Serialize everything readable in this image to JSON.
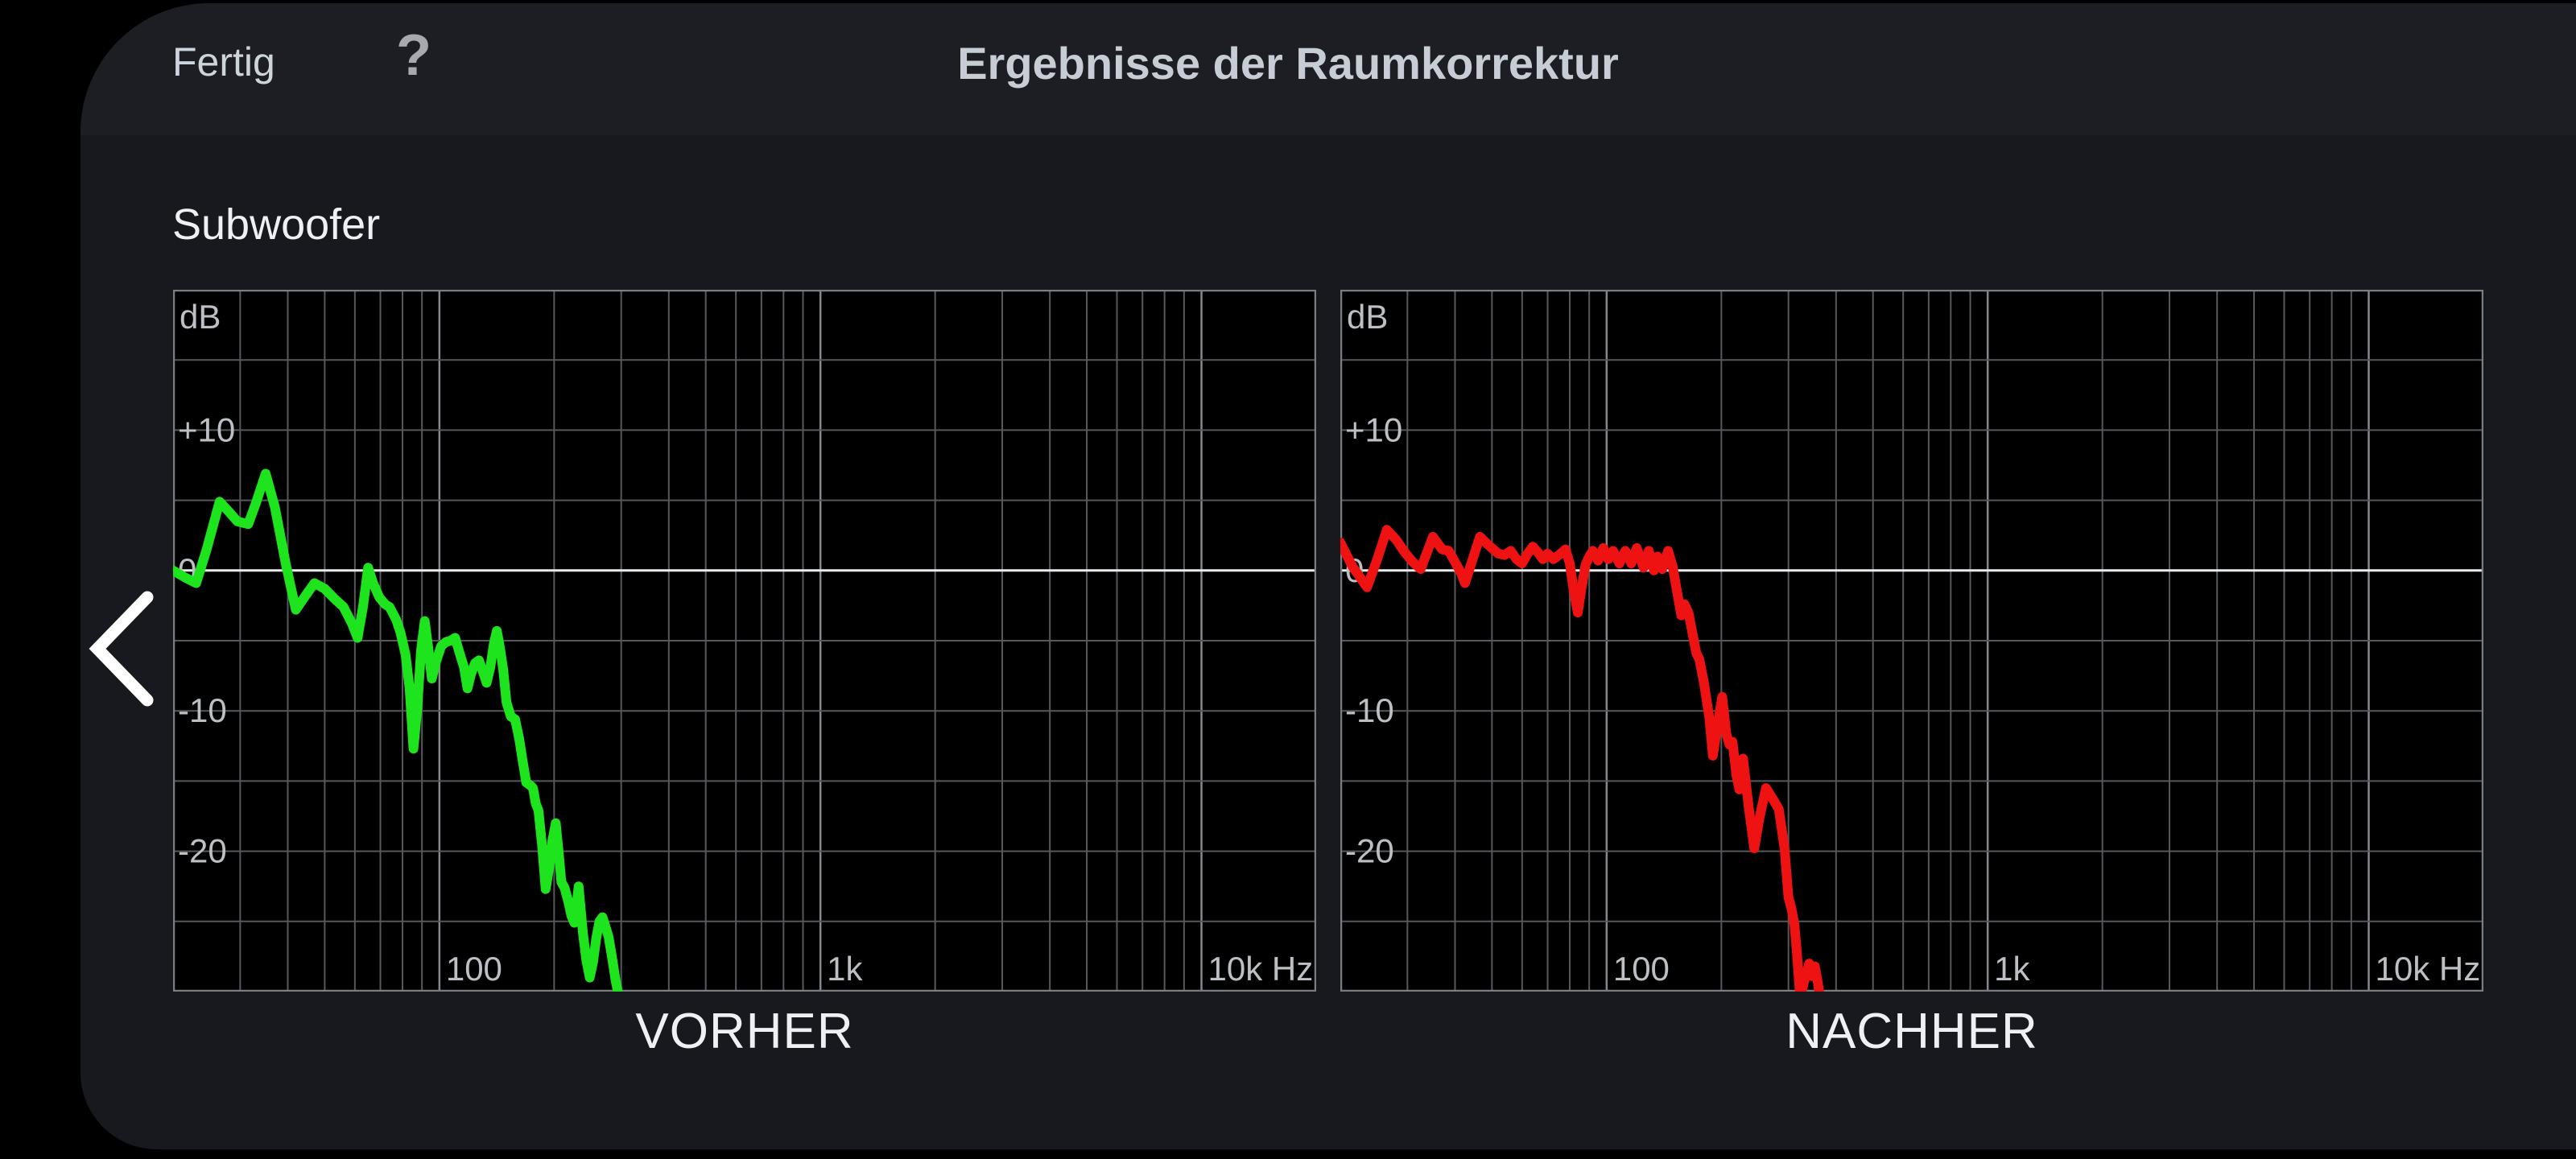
{
  "top_bar": {
    "done_label": "Fertig",
    "help_icon": "?",
    "title": "Ergebnisse der Raumkorrektur"
  },
  "section": {
    "speaker_label": "Subwoofer"
  },
  "nav": {
    "back_icon": "chevron-left"
  },
  "colors": {
    "background": "#000000",
    "panel": "#17191e",
    "topbar": "#1c1e23",
    "plot_background": "#000000",
    "grid": "#56585c",
    "grid_decade": "#85888c",
    "zero_line": "#e8ebee",
    "plot_border": "#7a7d80",
    "before_curve": "#1de41d",
    "after_curve": "#ee1212",
    "axis_text": "#bcc0c4",
    "caption_text": "#eef1f3"
  },
  "chart_data": [
    {
      "type": "line",
      "title": "VORHER",
      "y_unit": "dB",
      "xscale": "log",
      "xlim": [
        20,
        20000
      ],
      "ylim": [
        -30,
        20
      ],
      "grid_step_db": 5,
      "legend_position": "none",
      "y_ticks": [
        {
          "db": 10,
          "label": "+10"
        },
        {
          "db": 0,
          "label": "0"
        },
        {
          "db": -10,
          "label": "-10"
        },
        {
          "db": -20,
          "label": "-20"
        }
      ],
      "x_ticks": [
        {
          "f": 100,
          "label": "100"
        },
        {
          "f": 1000,
          "label": "1k"
        },
        {
          "f": 10000,
          "label": "10k Hz"
        }
      ],
      "series": [
        {
          "name": "VORHER",
          "color": "#1de41d",
          "points": [
            [
              20,
              0
            ],
            [
              21.5,
              -0.5
            ],
            [
              23,
              -0.9
            ],
            [
              24.5,
              1.5
            ],
            [
              26.5,
              4.9
            ],
            [
              28,
              4.2
            ],
            [
              29.5,
              3.5
            ],
            [
              31.5,
              3.3
            ],
            [
              33,
              4.8
            ],
            [
              35,
              6.9
            ],
            [
              37,
              4.5
            ],
            [
              39.5,
              0.5
            ],
            [
              42,
              -2.8
            ],
            [
              44.5,
              -1.8
            ],
            [
              47,
              -0.9
            ],
            [
              50,
              -1.3
            ],
            [
              53,
              -2
            ],
            [
              56,
              -2.6
            ],
            [
              59,
              -3.8
            ],
            [
              61,
              -4.8
            ],
            [
              63,
              -2.6
            ],
            [
              65,
              0.2
            ],
            [
              67,
              -0.9
            ],
            [
              69.5,
              -1.9
            ],
            [
              72,
              -2.4
            ],
            [
              74,
              -2.6
            ],
            [
              77,
              -3.5
            ],
            [
              79,
              -4.4
            ],
            [
              81.5,
              -6
            ],
            [
              83.5,
              -8.4
            ],
            [
              85.5,
              -12.7
            ],
            [
              87.5,
              -9.8
            ],
            [
              89.5,
              -5.7
            ],
            [
              91.5,
              -3.6
            ],
            [
              93.5,
              -5.5
            ],
            [
              95.5,
              -7.7
            ],
            [
              98,
              -6.5
            ],
            [
              101,
              -5.4
            ],
            [
              104,
              -5.1
            ],
            [
              107,
              -5
            ],
            [
              110,
              -4.8
            ],
            [
              113,
              -5.9
            ],
            [
              116,
              -6.9
            ],
            [
              118.5,
              -8.4
            ],
            [
              121,
              -7.4
            ],
            [
              124,
              -6.6
            ],
            [
              127,
              -6.4
            ],
            [
              130,
              -7.2
            ],
            [
              133,
              -8
            ],
            [
              136,
              -6.9
            ],
            [
              139,
              -5.2
            ],
            [
              141.5,
              -4.3
            ],
            [
              144,
              -5.4
            ],
            [
              147,
              -7
            ],
            [
              150,
              -9.4
            ],
            [
              154,
              -10.4
            ],
            [
              158,
              -10.6
            ],
            [
              162,
              -12
            ],
            [
              165,
              -13.4
            ],
            [
              169,
              -15.1
            ],
            [
              173,
              -15.3
            ],
            [
              176,
              -15.5
            ],
            [
              179,
              -16.6
            ],
            [
              182,
              -17.1
            ],
            [
              186,
              -19.6
            ],
            [
              190,
              -22.7
            ],
            [
              194,
              -21.2
            ],
            [
              198,
              -19.2
            ],
            [
              202,
              -18
            ],
            [
              206,
              -20.3
            ],
            [
              209,
              -22.2
            ],
            [
              213,
              -22.6
            ],
            [
              218,
              -23.6
            ],
            [
              222,
              -24.6
            ],
            [
              226,
              -25.1
            ],
            [
              229,
              -23.8
            ],
            [
              232,
              -22.5
            ],
            [
              238,
              -25.8
            ],
            [
              243,
              -27.8
            ],
            [
              248,
              -29
            ],
            [
              253,
              -27.9
            ],
            [
              258,
              -26.2
            ],
            [
              263,
              -25
            ],
            [
              268,
              -24.7
            ],
            [
              273,
              -25.4
            ],
            [
              278,
              -26.1
            ],
            [
              284,
              -27.6
            ],
            [
              290,
              -29.2
            ],
            [
              296,
              -30.4
            ]
          ]
        }
      ]
    },
    {
      "type": "line",
      "title": "NACHHER",
      "y_unit": "dB",
      "xscale": "log",
      "xlim": [
        20,
        20000
      ],
      "ylim": [
        -30,
        20
      ],
      "grid_step_db": 5,
      "legend_position": "none",
      "y_ticks": [
        {
          "db": 10,
          "label": "+10"
        },
        {
          "db": 0,
          "label": "0"
        },
        {
          "db": -10,
          "label": "-10"
        },
        {
          "db": -20,
          "label": "-20"
        }
      ],
      "x_ticks": [
        {
          "f": 100,
          "label": "100"
        },
        {
          "f": 1000,
          "label": "1k"
        },
        {
          "f": 10000,
          "label": "10k Hz"
        }
      ],
      "series": [
        {
          "name": "NACHHER",
          "color": "#ee1212",
          "points": [
            [
              20,
              2
            ],
            [
              21.5,
              0.3
            ],
            [
              23.5,
              -1.2
            ],
            [
              25,
              0.8
            ],
            [
              26.5,
              2.9
            ],
            [
              28,
              2.2
            ],
            [
              29.5,
              1.3
            ],
            [
              31,
              0.6
            ],
            [
              32.5,
              0.1
            ],
            [
              34,
              1.5
            ],
            [
              35,
              2.4
            ],
            [
              37,
              1.5
            ],
            [
              38.5,
              1.4
            ],
            [
              40,
              0.6
            ],
            [
              41.5,
              -0.2
            ],
            [
              42.5,
              -0.9
            ],
            [
              44.5,
              0.8
            ],
            [
              46.5,
              2.4
            ],
            [
              49,
              1.8
            ],
            [
              52,
              1.2
            ],
            [
              54,
              1.1
            ],
            [
              56,
              1.4
            ],
            [
              58,
              0.8
            ],
            [
              60,
              0.5
            ],
            [
              62,
              1.2
            ],
            [
              64,
              1.7
            ],
            [
              66,
              1.3
            ],
            [
              68,
              0.8
            ],
            [
              70,
              1.2
            ],
            [
              72.5,
              0.8
            ],
            [
              75,
              1.1
            ],
            [
              78,
              1.5
            ],
            [
              80,
              0.5
            ],
            [
              82,
              -1.5
            ],
            [
              84,
              -3
            ],
            [
              86,
              -1.2
            ],
            [
              88,
              0.4
            ],
            [
              90,
              1
            ],
            [
              92,
              1.4
            ],
            [
              95,
              0.7
            ],
            [
              98,
              1.6
            ],
            [
              101,
              0.8
            ],
            [
              104,
              1.4
            ],
            [
              108,
              0.5
            ],
            [
              112,
              1.4
            ],
            [
              116,
              0.5
            ],
            [
              120,
              1.6
            ],
            [
              125,
              0.2
            ],
            [
              129,
              1.4
            ],
            [
              133,
              0
            ],
            [
              136,
              1
            ],
            [
              140,
              0.1
            ],
            [
              145,
              1.4
            ],
            [
              149,
              0.3
            ],
            [
              153,
              -1.5
            ],
            [
              157,
              -3.2
            ],
            [
              160,
              -2.4
            ],
            [
              164,
              -3
            ],
            [
              168,
              -4.5
            ],
            [
              172,
              -5.9
            ],
            [
              175,
              -6.3
            ],
            [
              180,
              -8
            ],
            [
              186,
              -10.5
            ],
            [
              190,
              -13.2
            ],
            [
              196,
              -10.8
            ],
            [
              201,
              -9
            ],
            [
              206,
              -11.6
            ],
            [
              210,
              -12.4
            ],
            [
              214,
              -12.2
            ],
            [
              219,
              -14.6
            ],
            [
              223,
              -15.6
            ],
            [
              228,
              -13.4
            ],
            [
              236,
              -16.9
            ],
            [
              244,
              -19.8
            ],
            [
              252,
              -17.6
            ],
            [
              262,
              -15.5
            ],
            [
              272,
              -16.2
            ],
            [
              283,
              -17
            ],
            [
              293,
              -19.8
            ],
            [
              300,
              -23.3
            ],
            [
              305,
              -24
            ],
            [
              311,
              -25.2
            ],
            [
              316,
              -27.4
            ],
            [
              322,
              -30.4
            ],
            [
              332,
              -29
            ],
            [
              340,
              -28
            ],
            [
              346,
              -28.9
            ],
            [
              352,
              -28.2
            ],
            [
              358,
              -29.3
            ],
            [
              363,
              -30.4
            ]
          ]
        }
      ]
    }
  ]
}
